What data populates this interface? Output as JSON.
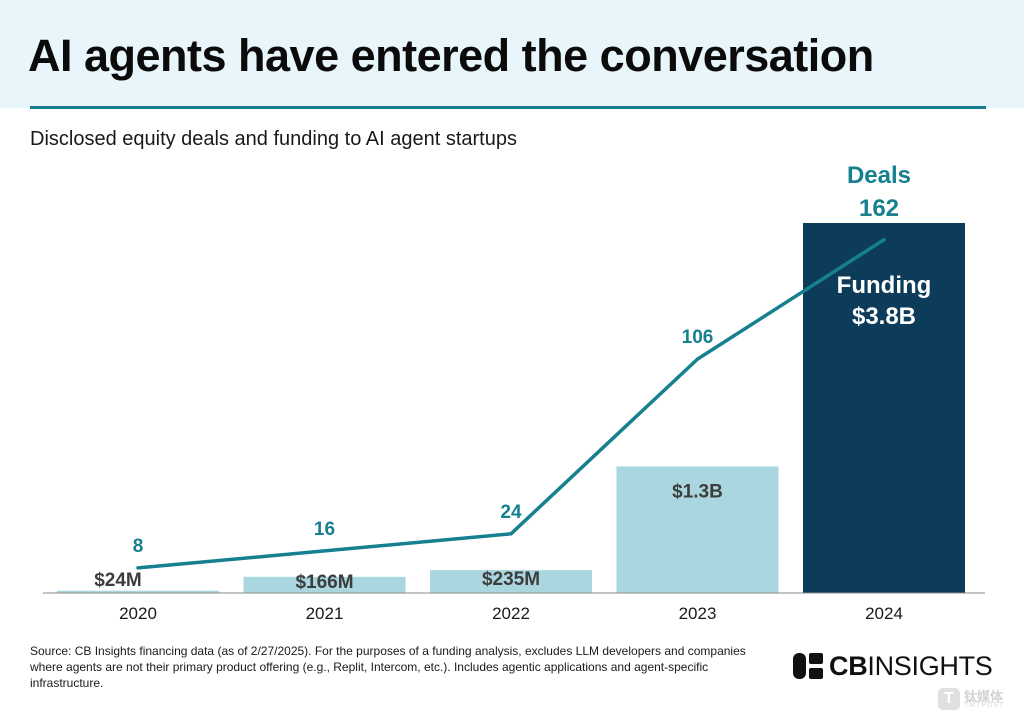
{
  "header": {
    "title": "AI agents have entered the conversation"
  },
  "subtitle": "Disclosed equity deals and funding to AI agent startups",
  "chart_data": {
    "type": "bar",
    "categories": [
      "2020",
      "2021",
      "2022",
      "2023",
      "2024"
    ],
    "series": [
      {
        "kind": "bar",
        "values": [
          0.024,
          0.166,
          0.235,
          1.3,
          3.8
        ],
        "labels": [
          "$24M",
          "$166M",
          "$235M",
          "$1.3B",
          "$3.8B"
        ],
        "unit": "B USD"
      },
      {
        "kind": "line",
        "values": [
          8,
          16,
          24,
          106,
          162
        ],
        "labels": [
          "8",
          "16",
          "24",
          "106",
          "162"
        ]
      }
    ],
    "highlight": {
      "deals_label": "Deals",
      "funding_label": "Funding"
    },
    "colors": {
      "bar": "#a9d6df",
      "bar_highlight": "#0d3c5b",
      "line": "#16808f",
      "bar_label": "#3d3d3d",
      "line_label": "#16808f"
    },
    "bar_ylim": [
      0,
      3.8
    ],
    "line_ylim": [
      0,
      175
    ]
  },
  "footer": {
    "source": "Source: CB Insights financing data (as of 2/27/2025). For the purposes of a funding analysis, excludes LLM developers and companies where agents are not their primary product offering (e.g., Replit, Intercom, etc.). Includes agentic applications and agent-specific infrastructure.",
    "logo_cb": "CB",
    "logo_insights": "INSIGHTS",
    "watermark_main": "钛媒体",
    "watermark_sub": "TMTPOST",
    "watermark_t": "T"
  }
}
